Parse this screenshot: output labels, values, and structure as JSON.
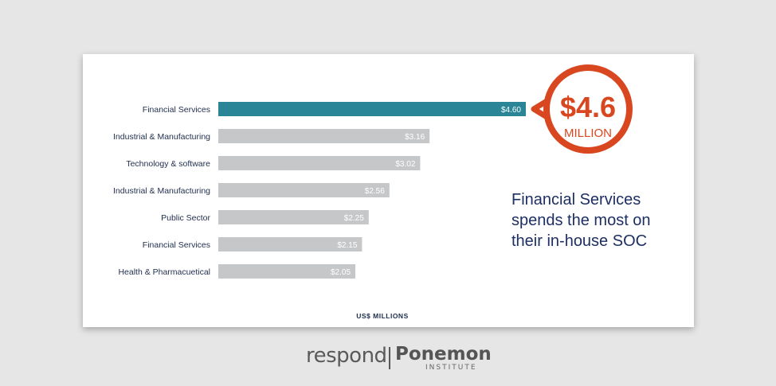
{
  "chart_data": {
    "type": "bar",
    "orientation": "horizontal",
    "categories": [
      "Financial Services",
      "Industrial & Manufacturing",
      "Technology & software",
      "Industrial & Manufacturing",
      "Public Sector",
      "Financial Services",
      "Health & Pharmacuetical"
    ],
    "values": [
      4.6,
      3.16,
      3.02,
      2.56,
      2.25,
      2.15,
      2.05
    ],
    "value_labels": [
      "$4.60",
      "$3.16",
      "$3.02",
      "$2.56",
      "$2.25",
      "$2.15",
      "$2.05"
    ],
    "xlabel": "US$ MILLIONS",
    "xlim": [
      0,
      4.6
    ],
    "grid": false,
    "colors": {
      "highlight": "#2a8597",
      "default": "#c6c7c9"
    }
  },
  "callout": {
    "amount": "$4.6",
    "unit": "MILLION",
    "color": "#d8471f"
  },
  "headline": "Financial Services spends the most on their in-house SOC",
  "logos": {
    "respond": "respond",
    "ponemon": "Ponemon",
    "institute": "INSTITUTE"
  }
}
